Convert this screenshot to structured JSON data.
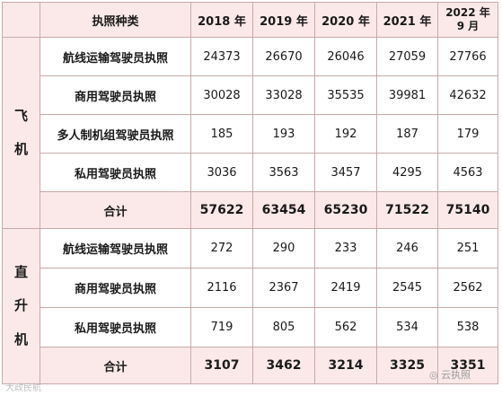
{
  "header": {
    "type_label": "执照种类",
    "years": [
      "2018 年",
      "2019 年",
      "2020 年",
      "2021 年"
    ],
    "last_year_line1": "2022 年",
    "last_year_line2": "9 月"
  },
  "groups": [
    {
      "category_chars": [
        "飞",
        "机"
      ],
      "rows": [
        {
          "label": "航线运输驾驶员执照",
          "values": [
            "24373",
            "26670",
            "26046",
            "27059",
            "27766"
          ]
        },
        {
          "label": "商用驾驶员执照",
          "values": [
            "30028",
            "33028",
            "35535",
            "39981",
            "42632"
          ]
        },
        {
          "label": "多人制机组驾驶员执照",
          "values": [
            "185",
            "193",
            "192",
            "187",
            "179"
          ]
        },
        {
          "label": "私用驾驶员执照",
          "values": [
            "3036",
            "3563",
            "3457",
            "4295",
            "4563"
          ]
        }
      ],
      "total": {
        "label": "合计",
        "values": [
          "57622",
          "63454",
          "65230",
          "71522",
          "75140"
        ]
      }
    },
    {
      "category_chars": [
        "直",
        "升",
        "机"
      ],
      "rows": [
        {
          "label": "航线运输驾驶员执照",
          "values": [
            "272",
            "290",
            "233",
            "246",
            "251"
          ]
        },
        {
          "label": "商用驾驶员执照",
          "values": [
            "2116",
            "2367",
            "2419",
            "2545",
            "2562"
          ]
        },
        {
          "label": "私用驾驶员执照",
          "values": [
            "719",
            "805",
            "562",
            "534",
            "538"
          ]
        }
      ],
      "total": {
        "label": "合计",
        "values": [
          "3107",
          "3462",
          "3214",
          "3325",
          "3351"
        ]
      }
    }
  ],
  "watermarks": {
    "left": "大政民航",
    "right": "云执照"
  }
}
